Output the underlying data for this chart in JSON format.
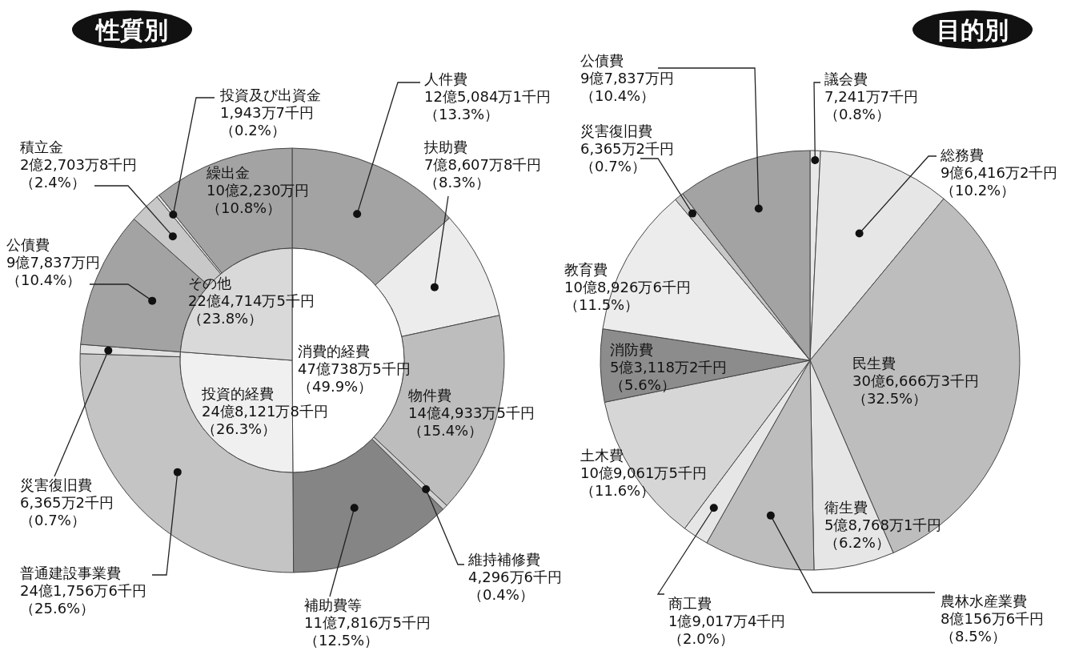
{
  "chart_data": [
    {
      "type": "donut",
      "title": "性質別",
      "categories": [
        "人件費",
        "扶助費",
        "物件費",
        "維持補修費",
        "補助費等",
        "普通建設事業費",
        "災害復旧費",
        "公債費",
        "積立金",
        "投資及び出資金",
        "繰出金"
      ],
      "values": [
        13.3,
        8.3,
        15.4,
        0.4,
        12.5,
        25.6,
        0.7,
        10.4,
        2.4,
        0.2,
        10.8
      ],
      "colors": [
        "#a3a3a3",
        "#ececec",
        "#bdbdbd",
        "#d0d0d0",
        "#858585",
        "#c4c4c4",
        "#e0e0e0",
        "#a3a3a3",
        "#c8c8c8",
        "#e6e6e6",
        "#a3a3a3"
      ],
      "value_labels": [
        "12億5,084万1千円（13.3%）",
        "7億8,607万8千円（8.3%）",
        "14億4,933万5千円（15.4%）",
        "4,296万6千円（0.4%）",
        "11億7,816万5千円（12.5%）",
        "24億1,756万6千円（25.6%）",
        "6,365万2千円（0.7%）",
        "9億7,837万円（10.4%）",
        "2億2,703万8千円（2.4%）",
        "1,943万7千円（0.2%）",
        "10億2,230万円（10.8%）"
      ]
    },
    {
      "type": "pie",
      "categories": [
        "消費的経費",
        "投資的経費",
        "その他"
      ],
      "values": [
        49.9,
        26.3,
        23.8
      ],
      "colors": [
        "#ffffff",
        "#f0f0f0",
        "#d9d9d9"
      ],
      "value_labels": [
        "47億738万5千円（49.9%）",
        "24億8,121万8千円（26.3%）",
        "22億4,714万5千円（23.8%）"
      ]
    },
    {
      "type": "pie",
      "title": "目的別",
      "categories": [
        "議会費",
        "総務費",
        "民生費",
        "衛生費",
        "農林水産業費",
        "商工費",
        "土木費",
        "消防費",
        "教育費",
        "災害復旧費",
        "公債費"
      ],
      "values": [
        0.8,
        10.2,
        32.5,
        6.2,
        8.5,
        2.0,
        11.6,
        5.6,
        11.5,
        0.7,
        10.4
      ],
      "colors": [
        "#e8e8e8",
        "#e6e6e6",
        "#bdbdbd",
        "#e6e6e6",
        "#bdbdbd",
        "#e6e6e6",
        "#d6d6d6",
        "#8c8c8c",
        "#ececec",
        "#c8c8c8",
        "#a3a3a3"
      ],
      "value_labels": [
        "7,241万7千円（0.8%）",
        "9億6,416万2千円（10.2%）",
        "30億6,666万3千円（32.5%）",
        "5億8,768万1千円（6.2%）",
        "8億156万6千円（8.5%）",
        "1億9,017万4千円（2.0%）",
        "10億9,061万5千円（11.6%）",
        "5億3,118万2千円（5.6%）",
        "10億8,926万6千円（11.5%）",
        "6,365万2千円（0.7%）",
        "9億7,837万円（10.4%）"
      ]
    }
  ]
}
